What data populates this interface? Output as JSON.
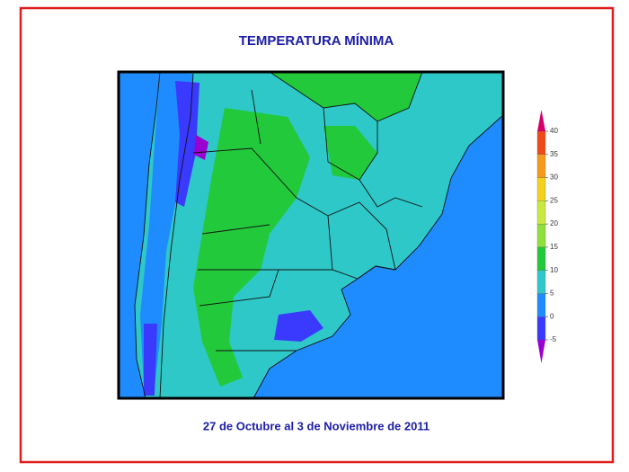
{
  "title": "TEMPERATURA MÍNIMA",
  "subtitle": "27 de Octubre al 3 de Noviembre de 2011",
  "colorbar": {
    "ticks": [
      -5,
      0,
      5,
      10,
      15,
      20,
      25,
      30,
      35,
      40
    ],
    "below_color": "#9a00d0",
    "above_color": "#d4006a",
    "colors": [
      "#3a3aff",
      "#1e8cff",
      "#2ec8c8",
      "#22c93a",
      "#8ee03a",
      "#c9e840",
      "#f2d21a",
      "#f59a1a",
      "#f04a18"
    ]
  }
}
